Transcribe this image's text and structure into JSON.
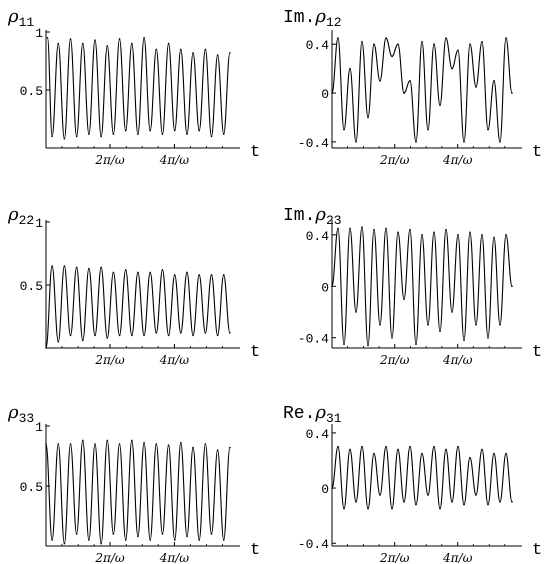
{
  "chart_data": [
    {
      "type": "line",
      "title": "ρ₁₁",
      "title_main": "ρ",
      "title_sub": "11",
      "xlabel": "t",
      "x_tick_labels": [
        "2π/ω",
        "4π/ω"
      ],
      "x_range": [
        0,
        6.2
      ],
      "y_range": [
        0,
        1
      ],
      "y_ticks": [
        {
          "value": 0.5,
          "label": "0.5"
        },
        {
          "value": 1,
          "label": "1"
        }
      ],
      "y_axis_at_zero": false,
      "series": [
        {
          "x": [
            0.05,
            0.2,
            0.4,
            0.6,
            0.8,
            1.0,
            1.2,
            1.4,
            1.6,
            1.8,
            2.0,
            2.2,
            2.4,
            2.6,
            2.8,
            3.0,
            3.2,
            3.4,
            3.6,
            3.8,
            4.0,
            4.2,
            4.4,
            4.6,
            4.8,
            5.0,
            5.2,
            5.4,
            5.6,
            5.8,
            6.0
          ],
          "y": [
            0.95,
            0.1,
            0.9,
            0.08,
            0.94,
            0.1,
            0.9,
            0.12,
            0.93,
            0.1,
            0.88,
            0.12,
            0.94,
            0.15,
            0.9,
            0.12,
            0.95,
            0.15,
            0.85,
            0.12,
            0.9,
            0.15,
            0.85,
            0.12,
            0.82,
            0.15,
            0.85,
            0.1,
            0.8,
            0.12,
            0.82
          ]
        }
      ]
    },
    {
      "type": "line",
      "title": "Im.ρ₁₂",
      "title_prefix": "Im.",
      "title_main": "ρ",
      "title_sub": "12",
      "xlabel": "t",
      "x_tick_labels": [
        "2π/ω",
        "4π/ω"
      ],
      "x_range": [
        0,
        6.2
      ],
      "y_range": [
        -0.45,
        0.5
      ],
      "y_ticks": [
        {
          "value": -0.4,
          "label": "-0.4"
        },
        {
          "value": 0,
          "label": "0"
        },
        {
          "value": 0.4,
          "label": "0.4"
        }
      ],
      "y_axis_at_zero": true,
      "series": [
        {
          "x": [
            0.0,
            0.2,
            0.4,
            0.6,
            0.8,
            1.0,
            1.2,
            1.4,
            1.6,
            1.8,
            2.0,
            2.2,
            2.4,
            2.6,
            2.8,
            3.0,
            3.2,
            3.4,
            3.6,
            3.8,
            4.0,
            4.2,
            4.4,
            4.6,
            4.8,
            5.0,
            5.2,
            5.4,
            5.6,
            5.8,
            6.0
          ],
          "y": [
            0.0,
            0.45,
            -0.3,
            0.2,
            -0.4,
            0.42,
            -0.2,
            0.4,
            0.1,
            0.45,
            0.3,
            0.4,
            0.0,
            0.1,
            -0.4,
            0.42,
            -0.3,
            0.4,
            -0.1,
            0.45,
            0.2,
            0.35,
            -0.4,
            0.4,
            0.05,
            0.42,
            -0.3,
            0.1,
            -0.4,
            0.45,
            0.0
          ]
        }
      ]
    },
    {
      "type": "line",
      "title": "ρ₂₂",
      "title_main": "ρ",
      "title_sub": "22",
      "xlabel": "t",
      "x_tick_labels": [
        "2π/ω",
        "4π/ω"
      ],
      "x_range": [
        0,
        6.2
      ],
      "y_range": [
        0,
        1
      ],
      "y_ticks": [
        {
          "value": 0.5,
          "label": "0.5"
        },
        {
          "value": 1,
          "label": "1"
        }
      ],
      "y_axis_at_zero": false,
      "series": [
        {
          "x": [
            0.0,
            0.2,
            0.4,
            0.6,
            0.8,
            1.0,
            1.2,
            1.4,
            1.6,
            1.8,
            2.0,
            2.2,
            2.4,
            2.6,
            2.8,
            3.0,
            3.2,
            3.4,
            3.6,
            3.8,
            4.0,
            4.2,
            4.4,
            4.6,
            4.8,
            5.0,
            5.2,
            5.4,
            5.6,
            5.8,
            6.0
          ],
          "y": [
            0.0,
            0.65,
            0.05,
            0.65,
            0.1,
            0.64,
            0.06,
            0.63,
            0.1,
            0.64,
            0.08,
            0.6,
            0.1,
            0.62,
            0.1,
            0.6,
            0.1,
            0.6,
            0.12,
            0.62,
            0.1,
            0.58,
            0.12,
            0.6,
            0.1,
            0.58,
            0.12,
            0.58,
            0.1,
            0.58,
            0.12
          ]
        }
      ]
    },
    {
      "type": "line",
      "title": "Im.ρ₂₃",
      "title_prefix": "Im.",
      "title_main": "ρ",
      "title_sub": "23",
      "xlabel": "t",
      "x_tick_labels": [
        "2π/ω",
        "4π/ω"
      ],
      "x_range": [
        0,
        6.2
      ],
      "y_range": [
        -0.48,
        0.5
      ],
      "y_ticks": [
        {
          "value": -0.4,
          "label": "-0.4"
        },
        {
          "value": 0,
          "label": "0"
        },
        {
          "value": 0.4,
          "label": "0.4"
        }
      ],
      "y_axis_at_zero": true,
      "series": [
        {
          "x": [
            0.0,
            0.2,
            0.4,
            0.6,
            0.8,
            1.0,
            1.2,
            1.4,
            1.6,
            1.8,
            2.0,
            2.2,
            2.4,
            2.6,
            2.8,
            3.0,
            3.2,
            3.4,
            3.6,
            3.8,
            4.0,
            4.2,
            4.4,
            4.6,
            4.8,
            5.0,
            5.2,
            5.4,
            5.6,
            5.8,
            6.0
          ],
          "y": [
            0.0,
            0.45,
            -0.45,
            0.45,
            -0.2,
            0.46,
            -0.46,
            0.44,
            -0.3,
            0.45,
            -0.4,
            0.42,
            -0.1,
            0.44,
            -0.45,
            0.4,
            -0.3,
            0.42,
            -0.35,
            0.44,
            -0.2,
            0.4,
            -0.42,
            0.42,
            -0.3,
            0.4,
            -0.4,
            0.38,
            -0.3,
            0.4,
            0.0
          ]
        }
      ]
    },
    {
      "type": "line",
      "title": "ρ₃₃",
      "title_main": "ρ",
      "title_sub": "33",
      "xlabel": "t",
      "x_tick_labels": [
        "2π/ω",
        "4π/ω"
      ],
      "x_range": [
        0,
        6.2
      ],
      "y_range": [
        0,
        1
      ],
      "y_ticks": [
        {
          "value": 0.5,
          "label": "0.5"
        },
        {
          "value": 1,
          "label": "1"
        }
      ],
      "y_axis_at_zero": false,
      "series": [
        {
          "x": [
            0.0,
            0.2,
            0.4,
            0.6,
            0.8,
            1.0,
            1.2,
            1.4,
            1.6,
            1.8,
            2.0,
            2.2,
            2.4,
            2.6,
            2.8,
            3.0,
            3.2,
            3.4,
            3.6,
            3.8,
            4.0,
            4.2,
            4.4,
            4.6,
            4.8,
            5.0,
            5.2,
            5.4,
            5.6,
            5.8,
            6.0
          ],
          "y": [
            0.85,
            0.05,
            0.85,
            0.02,
            0.85,
            0.1,
            0.88,
            0.05,
            0.85,
            0.02,
            0.88,
            0.1,
            0.85,
            0.05,
            0.88,
            0.08,
            0.86,
            0.05,
            0.85,
            0.1,
            0.84,
            0.05,
            0.86,
            0.08,
            0.82,
            0.05,
            0.85,
            0.1,
            0.8,
            0.05,
            0.82
          ]
        }
      ]
    },
    {
      "type": "line",
      "title": "Re.ρ₃₁",
      "title_prefix": "Re.",
      "title_main": "ρ",
      "title_sub": "31",
      "xlabel": "t",
      "x_tick_labels": [
        "2π/ω",
        "4π/ω"
      ],
      "x_range": [
        0,
        6.2
      ],
      "y_range": [
        -0.42,
        0.45
      ],
      "y_ticks": [
        {
          "value": -0.4,
          "label": "-0.4"
        },
        {
          "value": 0,
          "label": "0"
        },
        {
          "value": 0.4,
          "label": "0.4"
        }
      ],
      "y_axis_at_zero": true,
      "series": [
        {
          "x": [
            0.0,
            0.2,
            0.4,
            0.6,
            0.8,
            1.0,
            1.2,
            1.4,
            1.6,
            1.8,
            2.0,
            2.2,
            2.4,
            2.6,
            2.8,
            3.0,
            3.2,
            3.4,
            3.6,
            3.8,
            4.0,
            4.2,
            4.4,
            4.6,
            4.8,
            5.0,
            5.2,
            5.4,
            5.6,
            5.8,
            6.0
          ],
          "y": [
            0.0,
            0.3,
            -0.15,
            0.28,
            -0.1,
            0.3,
            -0.15,
            0.25,
            -0.05,
            0.3,
            -0.15,
            0.28,
            -0.1,
            0.3,
            -0.12,
            0.25,
            -0.05,
            0.3,
            -0.15,
            0.28,
            -0.1,
            0.3,
            -0.12,
            0.22,
            -0.05,
            0.28,
            -0.12,
            0.25,
            -0.1,
            0.25,
            -0.1
          ]
        }
      ]
    }
  ]
}
